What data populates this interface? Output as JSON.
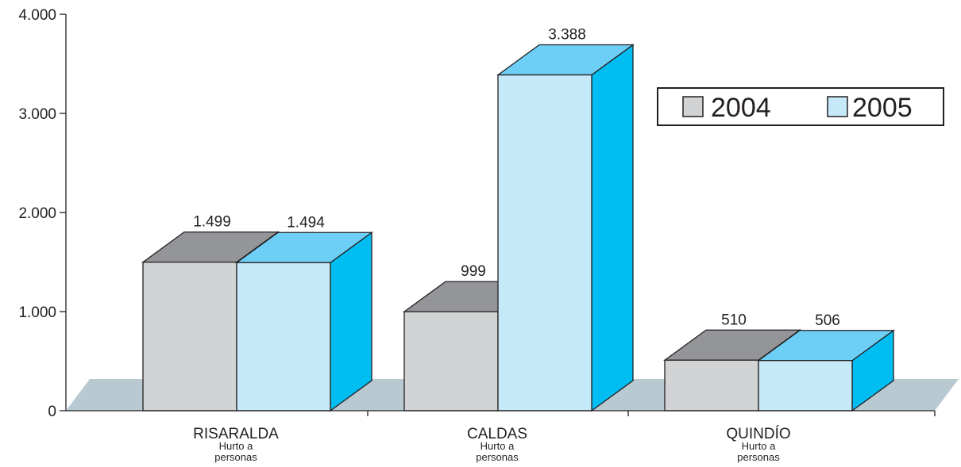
{
  "chart_data": {
    "type": "bar",
    "categories": [
      "RISARALDA",
      "CALDAS",
      "QUINDÍO"
    ],
    "category_sublabels": [
      "Hurto a personas",
      "Hurto a personas",
      "Hurto a personas"
    ],
    "category_sublabel_lines": [
      [
        "Hurto a",
        "personas"
      ],
      [
        "Hurto a",
        "personas"
      ],
      [
        "Hurto a",
        "personas"
      ]
    ],
    "series": [
      {
        "name": "2004",
        "values": [
          1499,
          999,
          510
        ],
        "labels": [
          "1.499",
          "999",
          "510"
        ]
      },
      {
        "name": "2005",
        "values": [
          1494,
          3388,
          506
        ],
        "labels": [
          "1.494",
          "3.388",
          "506"
        ]
      }
    ],
    "yticks": [
      0,
      1000,
      2000,
      3000,
      4000
    ],
    "ytick_labels": [
      "0",
      "1.000",
      "2.000",
      "3.000",
      "4.000"
    ],
    "ylim": [
      0,
      4000
    ],
    "title": "",
    "xlabel": "",
    "ylabel": "",
    "legend_position": "top-right",
    "grid": false,
    "style": "3d-bar",
    "colors": {
      "2004": {
        "front": "#d1d3d4",
        "top": "#939598",
        "side": "#939598"
      },
      "2005": {
        "front": "#c6e9fa",
        "top": "#6dcff6",
        "side": "#00bdf2"
      },
      "floor": "#b9c9d1",
      "axis": "#231f20"
    }
  }
}
